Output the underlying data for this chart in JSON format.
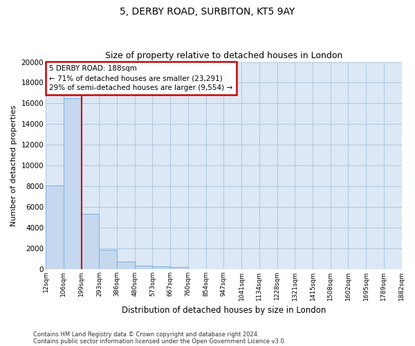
{
  "title": "5, DERBY ROAD, SURBITON, KT5 9AY",
  "subtitle": "Size of property relative to detached houses in London",
  "xlabel": "Distribution of detached houses by size in London",
  "ylabel": "Number of detached properties",
  "bar_color": "#c5d8ee",
  "bar_edge_color": "#7aaedb",
  "vline_color": "#cc0000",
  "vline_x_bin": 2,
  "annotation_text_line1": "5 DERBY ROAD: 188sqm",
  "annotation_text_line2": "← 71% of detached houses are smaller (23,291)",
  "annotation_text_line3": "29% of semi-detached houses are larger (9,554) →",
  "annotation_box_color": "#cc0000",
  "bins": [
    12,
    106,
    199,
    293,
    386,
    480,
    573,
    667,
    760,
    854,
    947,
    1041,
    1134,
    1228,
    1321,
    1415,
    1508,
    1602,
    1695,
    1789,
    1882
  ],
  "bin_labels": [
    "12sqm",
    "106sqm",
    "199sqm",
    "293sqm",
    "386sqm",
    "480sqm",
    "573sqm",
    "667sqm",
    "760sqm",
    "854sqm",
    "947sqm",
    "1041sqm",
    "1134sqm",
    "1228sqm",
    "1321sqm",
    "1415sqm",
    "1508sqm",
    "1602sqm",
    "1695sqm",
    "1789sqm",
    "1882sqm"
  ],
  "values": [
    8100,
    16500,
    5300,
    1850,
    750,
    350,
    250,
    200,
    0,
    0,
    0,
    0,
    0,
    0,
    0,
    0,
    0,
    0,
    0,
    0
  ],
  "ylim": [
    0,
    20000
  ],
  "yticks": [
    0,
    2000,
    4000,
    6000,
    8000,
    10000,
    12000,
    14000,
    16000,
    18000,
    20000
  ],
  "footer_line1": "Contains HM Land Registry data © Crown copyright and database right 2024.",
  "footer_line2": "Contains public sector information licensed under the Open Government Licence v3.0.",
  "background_color": "#ffffff",
  "axes_bg_color": "#dce8f5",
  "grid_color": "#b0c4de"
}
